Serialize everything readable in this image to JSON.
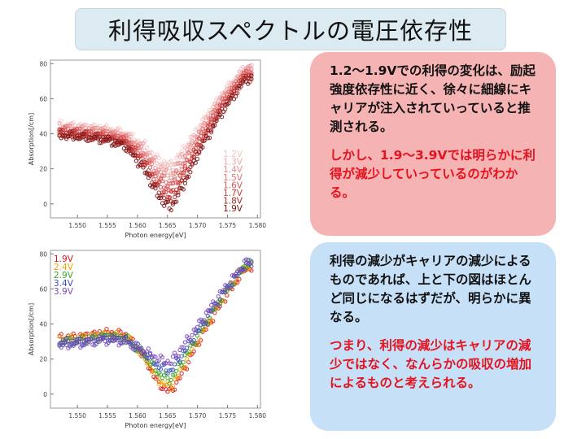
{
  "title": "利得吸収スペクトルの電圧依存性",
  "colors": {
    "title_bg": "#dcebf2",
    "note_red_bg": "#f6b3b4",
    "note_blue_bg": "#c6e0f8",
    "text_red": "#e4131f",
    "text_black": "#111111"
  },
  "notes": {
    "top": {
      "p1": "1.2～1.9Vでの利得の変化は、励起強度依存性に近く、徐々に細線にキャリアが注入されていっていると推測される。",
      "p2": "しかし、1.9～3.9Vでは明らかに利得が減少していっているのがわかる。"
    },
    "bottom": {
      "p1": "利得の減少がキャリアの減少によるものであれば、上と下の図はほとんど同じになるはずだが、明らかに異なる。",
      "p2": "つまり、利得の減少はキャリアの減少ではなく、なんらかの吸収の増加によるものと考えられる。"
    }
  },
  "chart_data": [
    {
      "type": "scatter",
      "title": "",
      "xlabel": "Photon energy[eV]",
      "ylabel": "Absorption[/cm]",
      "xlim": [
        1.5455,
        1.5805
      ],
      "ylim": [
        -8,
        82
      ],
      "xticks": [
        1.55,
        1.555,
        1.56,
        1.565,
        1.57,
        1.575,
        1.58
      ],
      "xtick_labels": [
        "1.550",
        "1.555",
        "1.560",
        "1.565",
        "1.570",
        "1.575",
        "1.580"
      ],
      "yticks": [
        0,
        20,
        40,
        60,
        80
      ],
      "ytick_labels": [
        "0",
        "20",
        "40",
        "60",
        "80"
      ],
      "legend_position": "bottom-right",
      "series": [
        {
          "name": "1.2V",
          "color": "#f4c4c4",
          "values": [
            45,
            44,
            43,
            40,
            34,
            25,
            22,
            30,
            45,
            62,
            78
          ]
        },
        {
          "name": "1.3V",
          "color": "#eeaaaa",
          "values": [
            44,
            43,
            42,
            39,
            32,
            22,
            19,
            27,
            43,
            61,
            77
          ]
        },
        {
          "name": "1.4V",
          "color": "#e88f8f",
          "values": [
            43,
            42,
            41,
            38,
            30,
            19,
            15,
            24,
            41,
            59,
            76
          ]
        },
        {
          "name": "1.5V",
          "color": "#e07272",
          "values": [
            42,
            41,
            40,
            37,
            28,
            16,
            11,
            21,
            39,
            58,
            75
          ]
        },
        {
          "name": "1.6V",
          "color": "#d75555",
          "values": [
            41,
            40,
            39,
            36,
            26,
            13,
            8,
            18,
            37,
            56,
            74
          ]
        },
        {
          "name": "1.7V",
          "color": "#c83c3c",
          "values": [
            40,
            39,
            38,
            35,
            24,
            10,
            4,
            15,
            35,
            55,
            73
          ]
        },
        {
          "name": "1.8V",
          "color": "#a82828",
          "values": [
            40,
            39,
            37,
            34,
            22,
            7,
            0,
            12,
            33,
            53,
            72
          ]
        },
        {
          "name": "1.9V",
          "color": "#7a1515",
          "values": [
            39,
            38,
            37,
            33,
            20,
            4,
            -3,
            9,
            31,
            52,
            71
          ]
        }
      ],
      "x": [
        1.5475,
        1.551,
        1.5545,
        1.558,
        1.561,
        1.5635,
        1.5655,
        1.5675,
        1.5705,
        1.574,
        1.578
      ]
    },
    {
      "type": "scatter",
      "title": "",
      "xlabel": "Photon energy[eV]",
      "ylabel": "Absorption[/cm]",
      "xlim": [
        1.5455,
        1.5805
      ],
      "ylim": [
        -8,
        82
      ],
      "xticks": [
        1.55,
        1.555,
        1.56,
        1.565,
        1.57,
        1.575,
        1.58
      ],
      "xtick_labels": [
        "1.550",
        "1.555",
        "1.560",
        "1.565",
        "1.570",
        "1.575",
        "1.580"
      ],
      "yticks": [
        0,
        20,
        40,
        60,
        80
      ],
      "ytick_labels": [
        "0",
        "20",
        "40",
        "60",
        "80"
      ],
      "legend_position": "top-left",
      "series": [
        {
          "name": "1.9V",
          "color": "#d9151c",
          "values": [
            32,
            33,
            35,
            34,
            22,
            6,
            1,
            12,
            32,
            52,
            72
          ]
        },
        {
          "name": "2.4V",
          "color": "#f2a300",
          "values": [
            31,
            32,
            34,
            33,
            22,
            8,
            4,
            15,
            34,
            54,
            73
          ]
        },
        {
          "name": "2.9V",
          "color": "#3aa82a",
          "values": [
            30,
            31,
            33,
            32,
            23,
            12,
            8,
            19,
            36,
            55,
            74
          ]
        },
        {
          "name": "3.4V",
          "color": "#3a4dbf",
          "values": [
            29,
            30,
            32,
            31,
            24,
            16,
            13,
            23,
            38,
            56,
            74
          ]
        },
        {
          "name": "3.9V",
          "color": "#7a4ab8",
          "values": [
            28,
            29,
            31,
            30,
            25,
            20,
            18,
            27,
            41,
            58,
            75
          ]
        }
      ],
      "x": [
        1.5475,
        1.551,
        1.5545,
        1.558,
        1.561,
        1.5635,
        1.5655,
        1.5675,
        1.5705,
        1.574,
        1.578
      ]
    }
  ]
}
